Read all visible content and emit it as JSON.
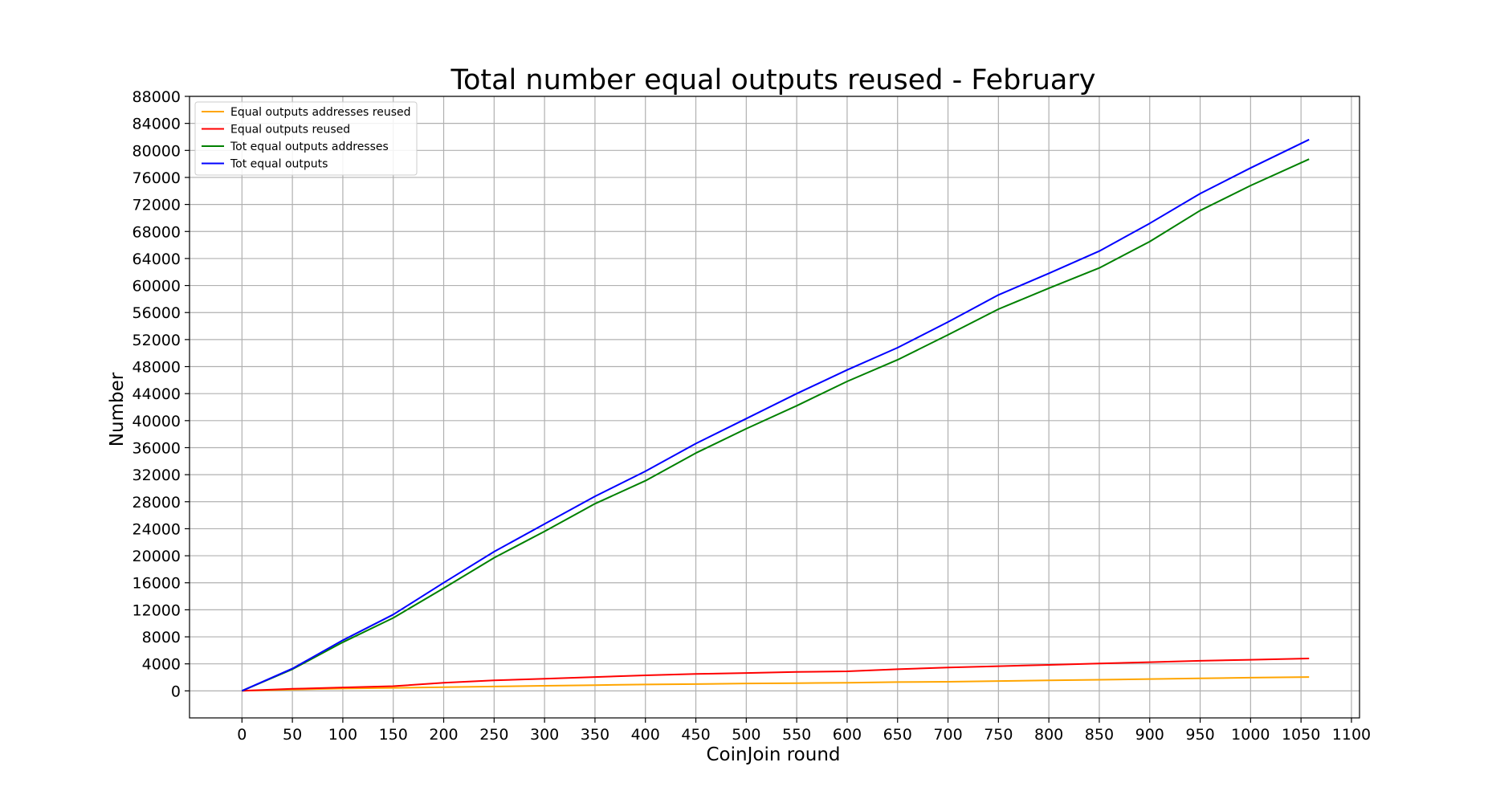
{
  "chart_data": {
    "type": "line",
    "title": "Total number equal outputs reused - February",
    "xlabel": "CoinJoin round",
    "ylabel": "Number",
    "xlim": [
      -52,
      1108
    ],
    "ylim": [
      -4000,
      88000
    ],
    "xticks": [
      0,
      50,
      100,
      150,
      200,
      250,
      300,
      350,
      400,
      450,
      500,
      550,
      600,
      650,
      700,
      750,
      800,
      850,
      900,
      950,
      1000,
      1050,
      1100
    ],
    "yticks": [
      0,
      4000,
      8000,
      12000,
      16000,
      20000,
      24000,
      28000,
      32000,
      36000,
      40000,
      44000,
      48000,
      52000,
      56000,
      60000,
      64000,
      68000,
      72000,
      76000,
      80000,
      84000,
      88000
    ],
    "grid": true,
    "legend_position": "upper-left",
    "x": [
      0,
      50,
      100,
      150,
      200,
      250,
      300,
      350,
      400,
      450,
      500,
      550,
      600,
      650,
      700,
      750,
      800,
      850,
      900,
      950,
      1000,
      1058
    ],
    "series": [
      {
        "name": "Equal outputs addresses reused",
        "color": "#ffa500",
        "values": [
          0,
          200,
          350,
          450,
          550,
          650,
          750,
          850,
          950,
          1000,
          1100,
          1150,
          1200,
          1300,
          1350,
          1450,
          1550,
          1650,
          1750,
          1850,
          1950,
          2050
        ]
      },
      {
        "name": "Equal outputs reused",
        "color": "#ff0000",
        "values": [
          0,
          300,
          500,
          700,
          1200,
          1550,
          1800,
          2050,
          2300,
          2500,
          2650,
          2800,
          2900,
          3200,
          3450,
          3650,
          3850,
          4050,
          4250,
          4450,
          4600,
          4800
        ]
      },
      {
        "name": "Tot equal outputs addresses",
        "color": "#008000",
        "values": [
          0,
          3200,
          7200,
          10800,
          15200,
          19700,
          23600,
          27700,
          31100,
          35200,
          38800,
          42200,
          45800,
          49000,
          52700,
          56500,
          59600,
          62600,
          66500,
          71100,
          74800,
          78700
        ]
      },
      {
        "name": "Tot equal outputs",
        "color": "#0000ff",
        "values": [
          0,
          3300,
          7500,
          11300,
          16000,
          20600,
          24700,
          28800,
          32500,
          36600,
          40300,
          44000,
          47500,
          50800,
          54600,
          58600,
          61800,
          65100,
          69200,
          73600,
          77400,
          81600
        ]
      }
    ]
  }
}
